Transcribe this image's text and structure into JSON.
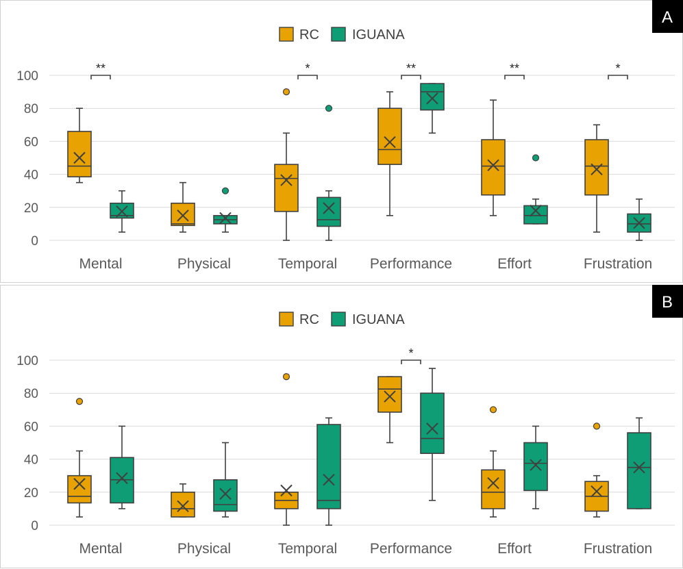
{
  "chart_data": [
    {
      "type": "box",
      "panel_label": "A",
      "legend": [
        "RC",
        "IGUANA"
      ],
      "colors": {
        "RC": "#E8A202",
        "IGUANA": "#0E9D74"
      },
      "ylim": [
        0,
        100
      ],
      "yticks": [
        "0",
        "20",
        "40",
        "60",
        "80",
        "100"
      ],
      "categories": [
        "Mental",
        "Physical",
        "Temporal",
        "Performance",
        "Effort",
        "Frustration"
      ],
      "significance": [
        "**",
        "",
        "*",
        "**",
        "**",
        "*"
      ],
      "series": [
        {
          "name": "RC",
          "boxes": [
            {
              "min": 35,
              "q1": 38.5,
              "median": 45,
              "q3": 66,
              "max": 80,
              "mean": 50,
              "outliers": []
            },
            {
              "min": 5,
              "q1": 9,
              "median": 10,
              "q3": 22.5,
              "max": 35,
              "mean": 15,
              "outliers": []
            },
            {
              "min": 0,
              "q1": 17.5,
              "median": 37.5,
              "q3": 46,
              "max": 65,
              "mean": 36.5,
              "outliers": [
                90
              ]
            },
            {
              "min": 15,
              "q1": 46,
              "median": 55,
              "q3": 80,
              "max": 90,
              "mean": 59.5,
              "outliers": []
            },
            {
              "min": 15,
              "q1": 27.5,
              "median": 45,
              "q3": 61,
              "max": 85,
              "mean": 45.5,
              "outliers": []
            },
            {
              "min": 5,
              "q1": 27.5,
              "median": 45,
              "q3": 61,
              "max": 70,
              "mean": 43,
              "outliers": []
            }
          ]
        },
        {
          "name": "IGUANA",
          "boxes": [
            {
              "min": 5,
              "q1": 13.5,
              "median": 15,
              "q3": 22.5,
              "max": 30,
              "mean": 17.5,
              "outliers": []
            },
            {
              "min": 5,
              "q1": 10,
              "median": 12.5,
              "q3": 15,
              "max": 15,
              "mean": 13.5,
              "outliers": [
                30
              ]
            },
            {
              "min": 0,
              "q1": 8.5,
              "median": 12.5,
              "q3": 26,
              "max": 30,
              "mean": 19.5,
              "outliers": [
                80
              ]
            },
            {
              "min": 65,
              "q1": 79,
              "median": 90,
              "q3": 95,
              "max": 95,
              "mean": 86,
              "outliers": []
            },
            {
              "min": 10,
              "q1": 10,
              "median": 15,
              "q3": 21,
              "max": 25,
              "mean": 18,
              "outliers": [
                50
              ]
            },
            {
              "min": 0,
              "q1": 5,
              "median": 10,
              "q3": 16,
              "max": 25,
              "mean": 10.5,
              "outliers": []
            }
          ]
        }
      ]
    },
    {
      "type": "box",
      "panel_label": "B",
      "legend": [
        "RC",
        "IGUANA"
      ],
      "colors": {
        "RC": "#E8A202",
        "IGUANA": "#0E9D74"
      },
      "ylim": [
        0,
        100
      ],
      "yticks": [
        "0",
        "20",
        "40",
        "60",
        "80",
        "100"
      ],
      "categories": [
        "Mental",
        "Physical",
        "Temporal",
        "Performance",
        "Effort",
        "Frustration"
      ],
      "significance": [
        "",
        "",
        "",
        "*",
        "",
        ""
      ],
      "series": [
        {
          "name": "RC",
          "boxes": [
            {
              "min": 5,
              "q1": 13.5,
              "median": 17.5,
              "q3": 30,
              "max": 45,
              "mean": 25,
              "outliers": [
                75
              ]
            },
            {
              "min": 5,
              "q1": 5,
              "median": 10,
              "q3": 20,
              "max": 25,
              "mean": 11.5,
              "outliers": []
            },
            {
              "min": 0,
              "q1": 10,
              "median": 15,
              "q3": 20,
              "max": 20,
              "mean": 21,
              "outliers": [
                90
              ]
            },
            {
              "min": 50,
              "q1": 68.5,
              "median": 82.5,
              "q3": 90,
              "max": 90,
              "mean": 78,
              "outliers": []
            },
            {
              "min": 5,
              "q1": 10,
              "median": 20,
              "q3": 33.5,
              "max": 45,
              "mean": 25.5,
              "outliers": [
                70
              ]
            },
            {
              "min": 5,
              "q1": 8.5,
              "median": 17.5,
              "q3": 26.5,
              "max": 30,
              "mean": 20.5,
              "outliers": [
                60
              ]
            }
          ]
        },
        {
          "name": "IGUANA",
          "boxes": [
            {
              "min": 10,
              "q1": 13.5,
              "median": 27.5,
              "q3": 41,
              "max": 60,
              "mean": 28.5,
              "outliers": []
            },
            {
              "min": 5,
              "q1": 8.5,
              "median": 12.5,
              "q3": 27.5,
              "max": 50,
              "mean": 19,
              "outliers": []
            },
            {
              "min": 0,
              "q1": 10,
              "median": 15,
              "q3": 61,
              "max": 65,
              "mean": 27.5,
              "outliers": []
            },
            {
              "min": 15,
              "q1": 43.5,
              "median": 52.5,
              "q3": 80,
              "max": 95,
              "mean": 58.5,
              "outliers": []
            },
            {
              "min": 10,
              "q1": 21,
              "median": 37.5,
              "q3": 50,
              "max": 60,
              "mean": 36.5,
              "outliers": []
            },
            {
              "min": 10,
              "q1": 10,
              "median": 35,
              "q3": 56,
              "max": 65,
              "mean": 35,
              "outliers": []
            }
          ]
        }
      ]
    }
  ]
}
